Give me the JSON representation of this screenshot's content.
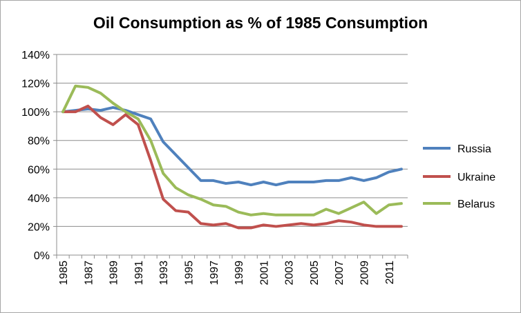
{
  "chart_data": {
    "type": "line",
    "title": "Oil Consumption as % of 1985 Consumption",
    "xlabel": "",
    "ylabel": "",
    "x": [
      1985,
      1986,
      1987,
      1988,
      1989,
      1990,
      1991,
      1992,
      1993,
      1994,
      1995,
      1996,
      1997,
      1998,
      1999,
      2000,
      2001,
      2002,
      2003,
      2004,
      2005,
      2006,
      2007,
      2008,
      2009,
      2010,
      2011,
      2012
    ],
    "x_tick_labels": [
      "1985",
      "1987",
      "1989",
      "1991",
      "1993",
      "1995",
      "1997",
      "1999",
      "2001",
      "2003",
      "2005",
      "2007",
      "2009",
      "2011"
    ],
    "y_tick_labels": [
      "0%",
      "20%",
      "40%",
      "60%",
      "80%",
      "100%",
      "120%",
      "140%"
    ],
    "ylim": [
      0,
      140
    ],
    "grid": true,
    "legend_position": "right",
    "series": [
      {
        "name": "Russia",
        "color": "#4f81bd",
        "values": [
          100,
          101,
          102,
          101,
          103,
          101,
          98,
          95,
          79,
          70,
          61,
          52,
          52,
          50,
          51,
          49,
          51,
          49,
          51,
          51,
          51,
          52,
          52,
          54,
          52,
          54,
          58,
          60
        ]
      },
      {
        "name": "Ukraine",
        "color": "#c0504d",
        "values": [
          100,
          100,
          104,
          96,
          91,
          98,
          91,
          66,
          39,
          31,
          30,
          22,
          21,
          22,
          19,
          19,
          21,
          20,
          21,
          22,
          21,
          22,
          24,
          23,
          21,
          20,
          20,
          20
        ]
      },
      {
        "name": "Belarus",
        "color": "#9bbb59",
        "values": [
          100,
          118,
          117,
          113,
          106,
          100,
          95,
          80,
          57,
          47,
          42,
          39,
          35,
          34,
          30,
          28,
          29,
          28,
          28,
          28,
          28,
          32,
          29,
          33,
          37,
          29,
          35,
          36
        ]
      }
    ]
  }
}
